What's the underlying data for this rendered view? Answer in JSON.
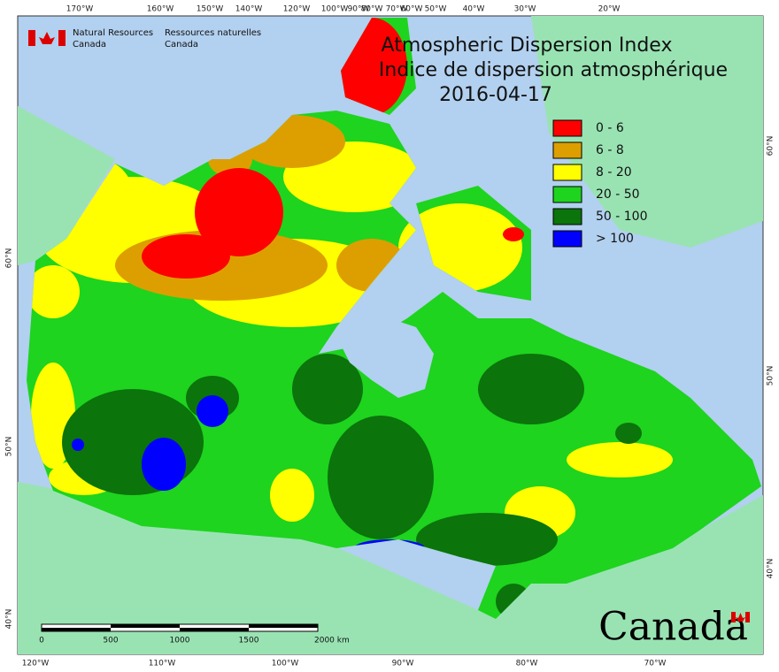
{
  "header": {
    "agency_en": [
      "Natural Resources",
      "Canada"
    ],
    "agency_fr": [
      "Ressources naturelles",
      "Canada"
    ]
  },
  "title": {
    "line1": "Atmospheric Dispersion Index",
    "line2": "Indice de dispersion atmosphérique",
    "date": "2016-04-17"
  },
  "legend": [
    {
      "label": "0 - 6",
      "color": "#ff0000"
    },
    {
      "label": "6 - 8",
      "color": "#dd9f00"
    },
    {
      "label": "8 - 20",
      "color": "#ffff00"
    },
    {
      "label": "20 - 50",
      "color": "#1ed41e"
    },
    {
      "label": "50 - 100",
      "color": "#0b740b"
    },
    {
      "label": "> 100",
      "color": "#0000ff"
    }
  ],
  "graticule": {
    "top": [
      "170°W",
      "160°W",
      "150°W",
      "140°W",
      "120°W",
      "100°W",
      "90°W",
      "80°W",
      "70°W",
      "60°W",
      "50°W",
      "40°W",
      "30°W",
      "20°W"
    ],
    "bottom": [
      "120°W",
      "110°W",
      "100°W",
      "90°W",
      "80°W",
      "70°W"
    ],
    "left": [
      "60°N",
      "50°N",
      "40°N"
    ],
    "right": [
      "60°N",
      "50°N",
      "40°N"
    ]
  },
  "scale_bar": {
    "labels": [
      "0",
      "500",
      "1000",
      "1500",
      "2000 km"
    ]
  },
  "wordmark": "Canada"
}
